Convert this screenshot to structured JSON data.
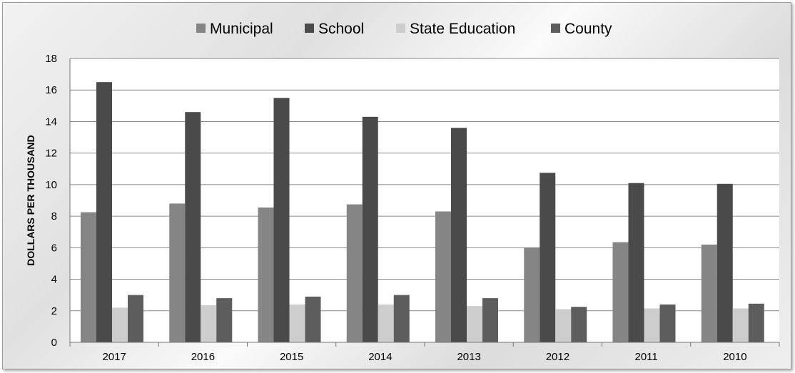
{
  "chart_data": {
    "type": "bar",
    "title": "",
    "xlabel": "",
    "ylabel": "DOLLARS PER THOUSAND",
    "categories": [
      "2017",
      "2016",
      "2015",
      "2014",
      "2013",
      "2012",
      "2011",
      "2010"
    ],
    "ylim": [
      0,
      18
    ],
    "yticks": [
      0,
      2,
      4,
      6,
      8,
      10,
      12,
      14,
      16,
      18
    ],
    "grid": true,
    "legend_position": "top",
    "series": [
      {
        "name": "Municipal",
        "color": "#858585",
        "values": [
          8.25,
          8.8,
          8.55,
          8.75,
          8.3,
          6.0,
          6.35,
          6.2
        ]
      },
      {
        "name": "School",
        "color": "#4a4a4a",
        "values": [
          16.5,
          14.6,
          15.5,
          14.3,
          13.6,
          10.75,
          10.1,
          10.05
        ]
      },
      {
        "name": "State Education",
        "color": "#cdcdcd",
        "values": [
          2.2,
          2.35,
          2.4,
          2.4,
          2.3,
          2.1,
          2.15,
          2.15
        ]
      },
      {
        "name": "County",
        "color": "#5d5d5d",
        "values": [
          3.0,
          2.8,
          2.9,
          3.0,
          2.8,
          2.25,
          2.4,
          2.45
        ]
      }
    ]
  }
}
